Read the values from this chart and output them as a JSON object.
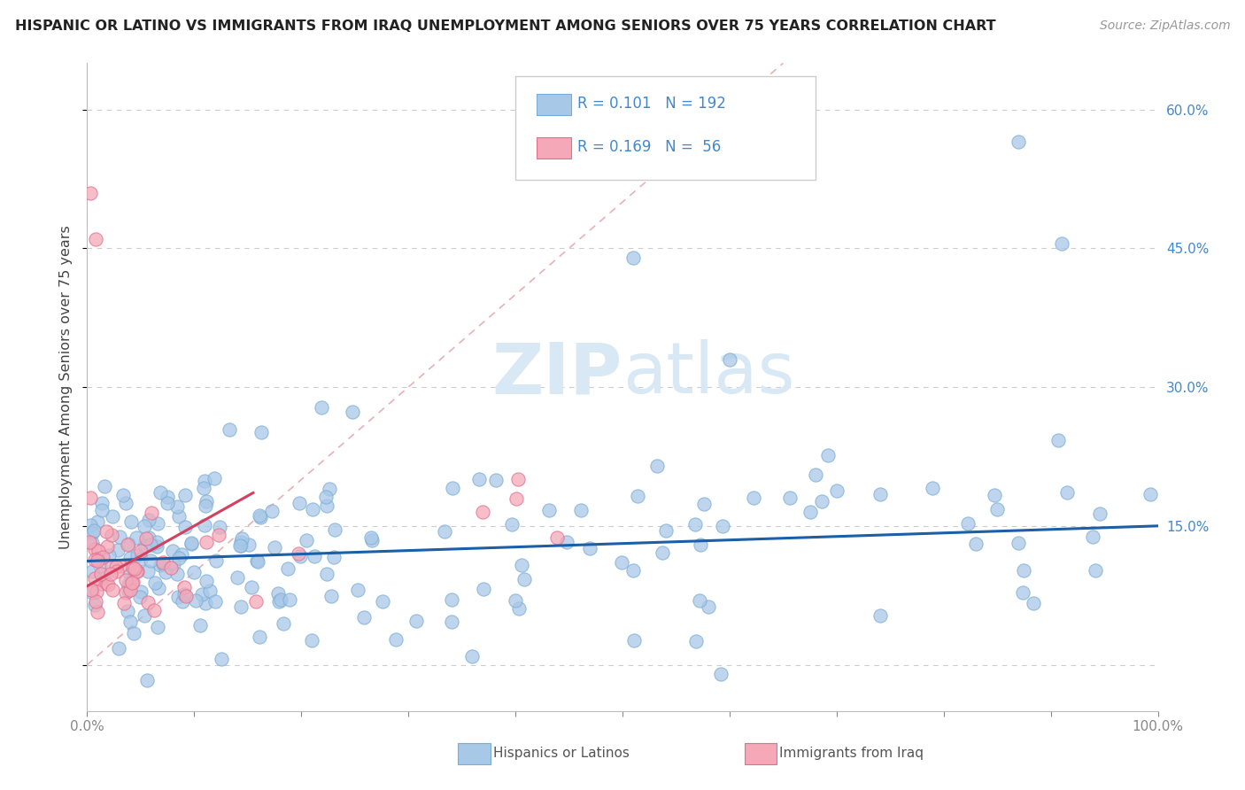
{
  "title": "HISPANIC OR LATINO VS IMMIGRANTS FROM IRAQ UNEMPLOYMENT AMONG SENIORS OVER 75 YEARS CORRELATION CHART",
  "source": "Source: ZipAtlas.com",
  "ylabel": "Unemployment Among Seniors over 75 years",
  "xlim": [
    0.0,
    1.0
  ],
  "ylim": [
    -0.05,
    0.65
  ],
  "y_ticks": [
    0.0,
    0.15,
    0.3,
    0.45,
    0.6
  ],
  "y_tick_labels": [
    "",
    "15.0%",
    "30.0%",
    "45.0%",
    "60.0%"
  ],
  "x_tick_labels": [
    "0.0%",
    "",
    "",
    "",
    "",
    "",
    "",
    "",
    "",
    "",
    "100.0%"
  ],
  "blue_color": "#a8c8e8",
  "blue_edge_color": "#7aadd4",
  "pink_color": "#f4a8b8",
  "pink_edge_color": "#e07090",
  "blue_line_color": "#1a5fa8",
  "pink_line_color": "#d44060",
  "diagonal_color": "#e8b0b8",
  "right_tick_color": "#4488cc",
  "watermark_color": "#d8e8f4",
  "label1": "Hispanics or Latinos",
  "label2": "Immigrants from Iraq",
  "legend_blue_r": "R = 0.101",
  "legend_blue_n": "N = 192",
  "legend_pink_r": "R = 0.169",
  "legend_pink_n": "N =  56"
}
